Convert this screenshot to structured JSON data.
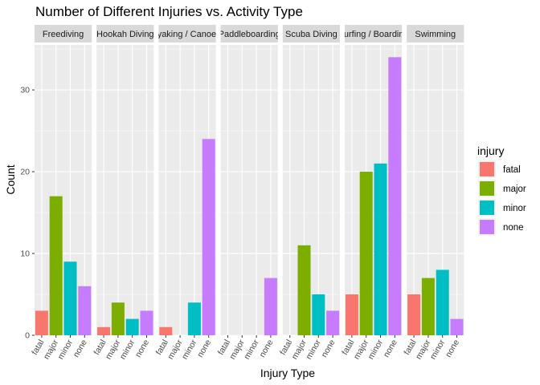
{
  "chart_data": {
    "type": "bar",
    "title": "Number of Different Injuries vs. Activity Type",
    "xlabel": "Injury Type",
    "ylabel": "Count",
    "ylim": [
      0,
      35.5
    ],
    "yticks": [
      0,
      10,
      20,
      30
    ],
    "categories": [
      "fatal",
      "major",
      "minor",
      "none"
    ],
    "grid": true,
    "legend": {
      "title": "injury",
      "position": "right",
      "entries": [
        "fatal",
        "major",
        "minor",
        "none"
      ]
    },
    "colors": {
      "fatal": "#F8766D",
      "major": "#7CAE00",
      "minor": "#00BFC4",
      "none": "#C77CFF"
    },
    "facets": [
      {
        "name": "Freediving",
        "values": [
          3,
          17,
          9,
          6
        ]
      },
      {
        "name": "Hookah Diving",
        "values": [
          1,
          4,
          2,
          3
        ]
      },
      {
        "name": "Kayaking / Canoeing",
        "values": [
          1,
          0,
          4,
          24
        ]
      },
      {
        "name": "Paddleboarding",
        "values": [
          0,
          0,
          0,
          7
        ]
      },
      {
        "name": "Scuba Diving",
        "values": [
          0,
          11,
          5,
          3
        ]
      },
      {
        "name": "Surfing / Boarding",
        "values": [
          5,
          20,
          21,
          34
        ]
      },
      {
        "name": "Swimming",
        "values": [
          5,
          7,
          8,
          2
        ]
      }
    ]
  }
}
